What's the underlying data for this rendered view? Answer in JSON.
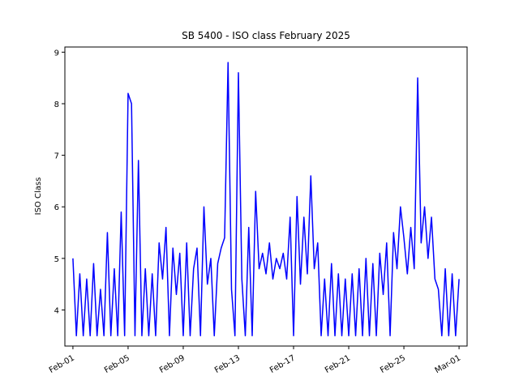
{
  "chart_data": {
    "type": "line",
    "title": "SB 5400 - ISO class February 2025",
    "xlabel": "",
    "ylabel": "ISO Class",
    "x_ticks": [
      "Feb-01",
      "Feb-05",
      "Feb-09",
      "Feb-13",
      "Feb-17",
      "Feb-21",
      "Feb-25",
      "Mar-01"
    ],
    "xlim": [
      "2025-01-31T10:00",
      "2025-03-01T14:00"
    ],
    "ylim": [
      3.3,
      9.1
    ],
    "y_ticks": [
      4,
      5,
      6,
      7,
      8,
      9
    ],
    "grid": false,
    "color": "#0000ff",
    "series": [
      {
        "x": [
          "2025-02-01T00:00",
          "2025-02-01T06:00",
          "2025-02-01T12:00",
          "2025-02-01T18:00",
          "2025-02-02T00:00",
          "2025-02-02T06:00",
          "2025-02-02T12:00",
          "2025-02-02T18:00",
          "2025-02-03T00:00",
          "2025-02-03T06:00",
          "2025-02-03T12:00",
          "2025-02-03T18:00",
          "2025-02-04T00:00",
          "2025-02-04T06:00",
          "2025-02-04T12:00",
          "2025-02-04T18:00",
          "2025-02-05T00:00",
          "2025-02-05T06:00",
          "2025-02-05T12:00",
          "2025-02-05T18:00",
          "2025-02-06T00:00",
          "2025-02-06T06:00",
          "2025-02-06T12:00",
          "2025-02-06T18:00",
          "2025-02-07T00:00",
          "2025-02-07T06:00",
          "2025-02-07T12:00",
          "2025-02-07T18:00",
          "2025-02-08T00:00",
          "2025-02-08T06:00",
          "2025-02-08T12:00",
          "2025-02-08T18:00",
          "2025-02-09T00:00",
          "2025-02-09T06:00",
          "2025-02-09T12:00",
          "2025-02-09T18:00",
          "2025-02-10T00:00",
          "2025-02-10T06:00",
          "2025-02-10T12:00",
          "2025-02-10T18:00",
          "2025-02-11T00:00",
          "2025-02-11T06:00",
          "2025-02-11T12:00",
          "2025-02-11T18:00",
          "2025-02-12T00:00",
          "2025-02-12T06:00",
          "2025-02-12T12:00",
          "2025-02-12T18:00",
          "2025-02-13T00:00",
          "2025-02-13T06:00",
          "2025-02-13T12:00",
          "2025-02-13T18:00",
          "2025-02-14T00:00",
          "2025-02-14T06:00",
          "2025-02-14T12:00",
          "2025-02-14T18:00",
          "2025-02-15T00:00",
          "2025-02-15T06:00",
          "2025-02-15T12:00",
          "2025-02-15T18:00",
          "2025-02-16T00:00",
          "2025-02-16T06:00",
          "2025-02-16T12:00",
          "2025-02-16T18:00",
          "2025-02-17T00:00",
          "2025-02-17T06:00",
          "2025-02-17T12:00",
          "2025-02-17T18:00",
          "2025-02-18T00:00",
          "2025-02-18T06:00",
          "2025-02-18T12:00",
          "2025-02-18T18:00",
          "2025-02-19T00:00",
          "2025-02-19T06:00",
          "2025-02-19T12:00",
          "2025-02-19T18:00",
          "2025-02-20T00:00",
          "2025-02-20T06:00",
          "2025-02-20T12:00",
          "2025-02-20T18:00",
          "2025-02-21T00:00",
          "2025-02-21T06:00",
          "2025-02-21T12:00",
          "2025-02-21T18:00",
          "2025-02-22T00:00",
          "2025-02-22T06:00",
          "2025-02-22T12:00",
          "2025-02-22T18:00",
          "2025-02-23T00:00",
          "2025-02-23T06:00",
          "2025-02-23T12:00",
          "2025-02-23T18:00",
          "2025-02-24T00:00",
          "2025-02-24T06:00",
          "2025-02-24T12:00",
          "2025-02-24T18:00",
          "2025-02-25T00:00",
          "2025-02-25T06:00",
          "2025-02-25T12:00",
          "2025-02-25T18:00",
          "2025-02-26T00:00",
          "2025-02-26T06:00",
          "2025-02-26T12:00",
          "2025-02-26T18:00",
          "2025-02-27T00:00",
          "2025-02-27T06:00",
          "2025-02-27T12:00",
          "2025-02-27T18:00",
          "2025-02-28T00:00",
          "2025-02-28T06:00",
          "2025-02-28T12:00",
          "2025-02-28T18:00",
          "2025-03-01T00:00"
        ],
        "y": [
          5.0,
          3.5,
          4.7,
          3.5,
          4.6,
          3.5,
          4.9,
          3.5,
          4.4,
          3.5,
          5.5,
          3.5,
          4.8,
          3.5,
          5.9,
          3.5,
          8.2,
          8.0,
          3.5,
          6.9,
          3.5,
          4.8,
          3.5,
          4.7,
          3.5,
          5.3,
          4.6,
          5.6,
          3.5,
          5.2,
          4.3,
          5.1,
          3.5,
          5.3,
          3.5,
          4.8,
          5.2,
          3.5,
          6.0,
          4.5,
          5.0,
          3.5,
          4.9,
          5.2,
          5.4,
          8.8,
          4.4,
          3.5,
          8.6,
          4.6,
          3.5,
          5.6,
          3.5,
          6.3,
          4.8,
          5.1,
          4.7,
          5.3,
          4.6,
          5.0,
          4.8,
          5.1,
          4.6,
          5.8,
          3.5,
          6.2,
          4.5,
          5.8,
          4.7,
          6.6,
          4.8,
          5.3,
          3.5,
          4.6,
          3.5,
          4.9,
          3.5,
          4.7,
          3.5,
          4.6,
          3.5,
          4.7,
          3.5,
          4.8,
          3.5,
          5.0,
          3.5,
          4.9,
          3.5,
          5.1,
          4.3,
          5.3,
          3.5,
          5.5,
          4.8,
          6.0,
          5.4,
          4.7,
          5.6,
          4.8,
          8.5,
          5.3,
          6.0,
          5.0,
          5.8,
          4.6,
          4.4,
          3.5,
          4.8,
          3.5,
          4.7,
          3.5,
          4.6
        ]
      }
    ]
  }
}
